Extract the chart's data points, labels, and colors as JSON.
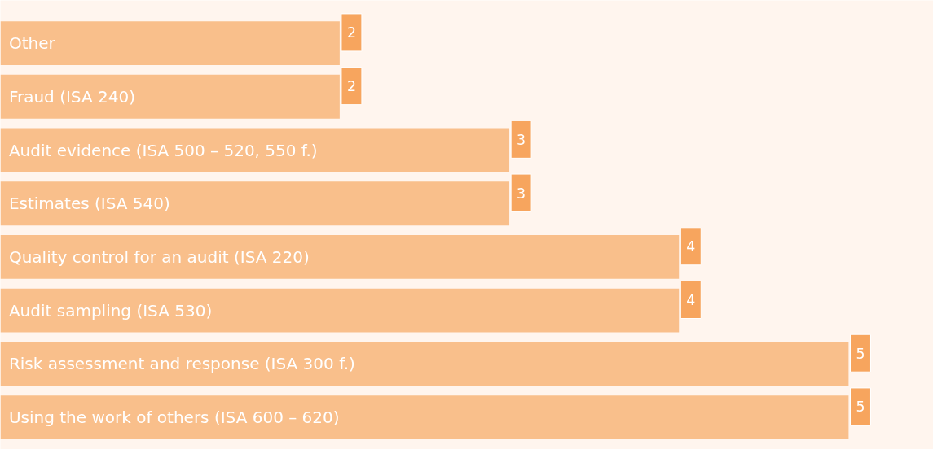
{
  "chart_data": {
    "type": "bar",
    "orientation": "horizontal",
    "categories": [
      "Other",
      "Fraud (ISA 240)",
      "Audit evidence (ISA 500 – 520, 550 f.)",
      "Estimates (ISA 540)",
      "Quality control for an audit (ISA 220)",
      "Audit sampling (ISA 530)",
      "Risk assessment and response (ISA 300 f.)",
      "Using the work of others (ISA 600 – 620)"
    ],
    "values": [
      2,
      2,
      3,
      3,
      4,
      4,
      5,
      5
    ],
    "color": "#f9bf8b",
    "data_labels": true
  }
}
